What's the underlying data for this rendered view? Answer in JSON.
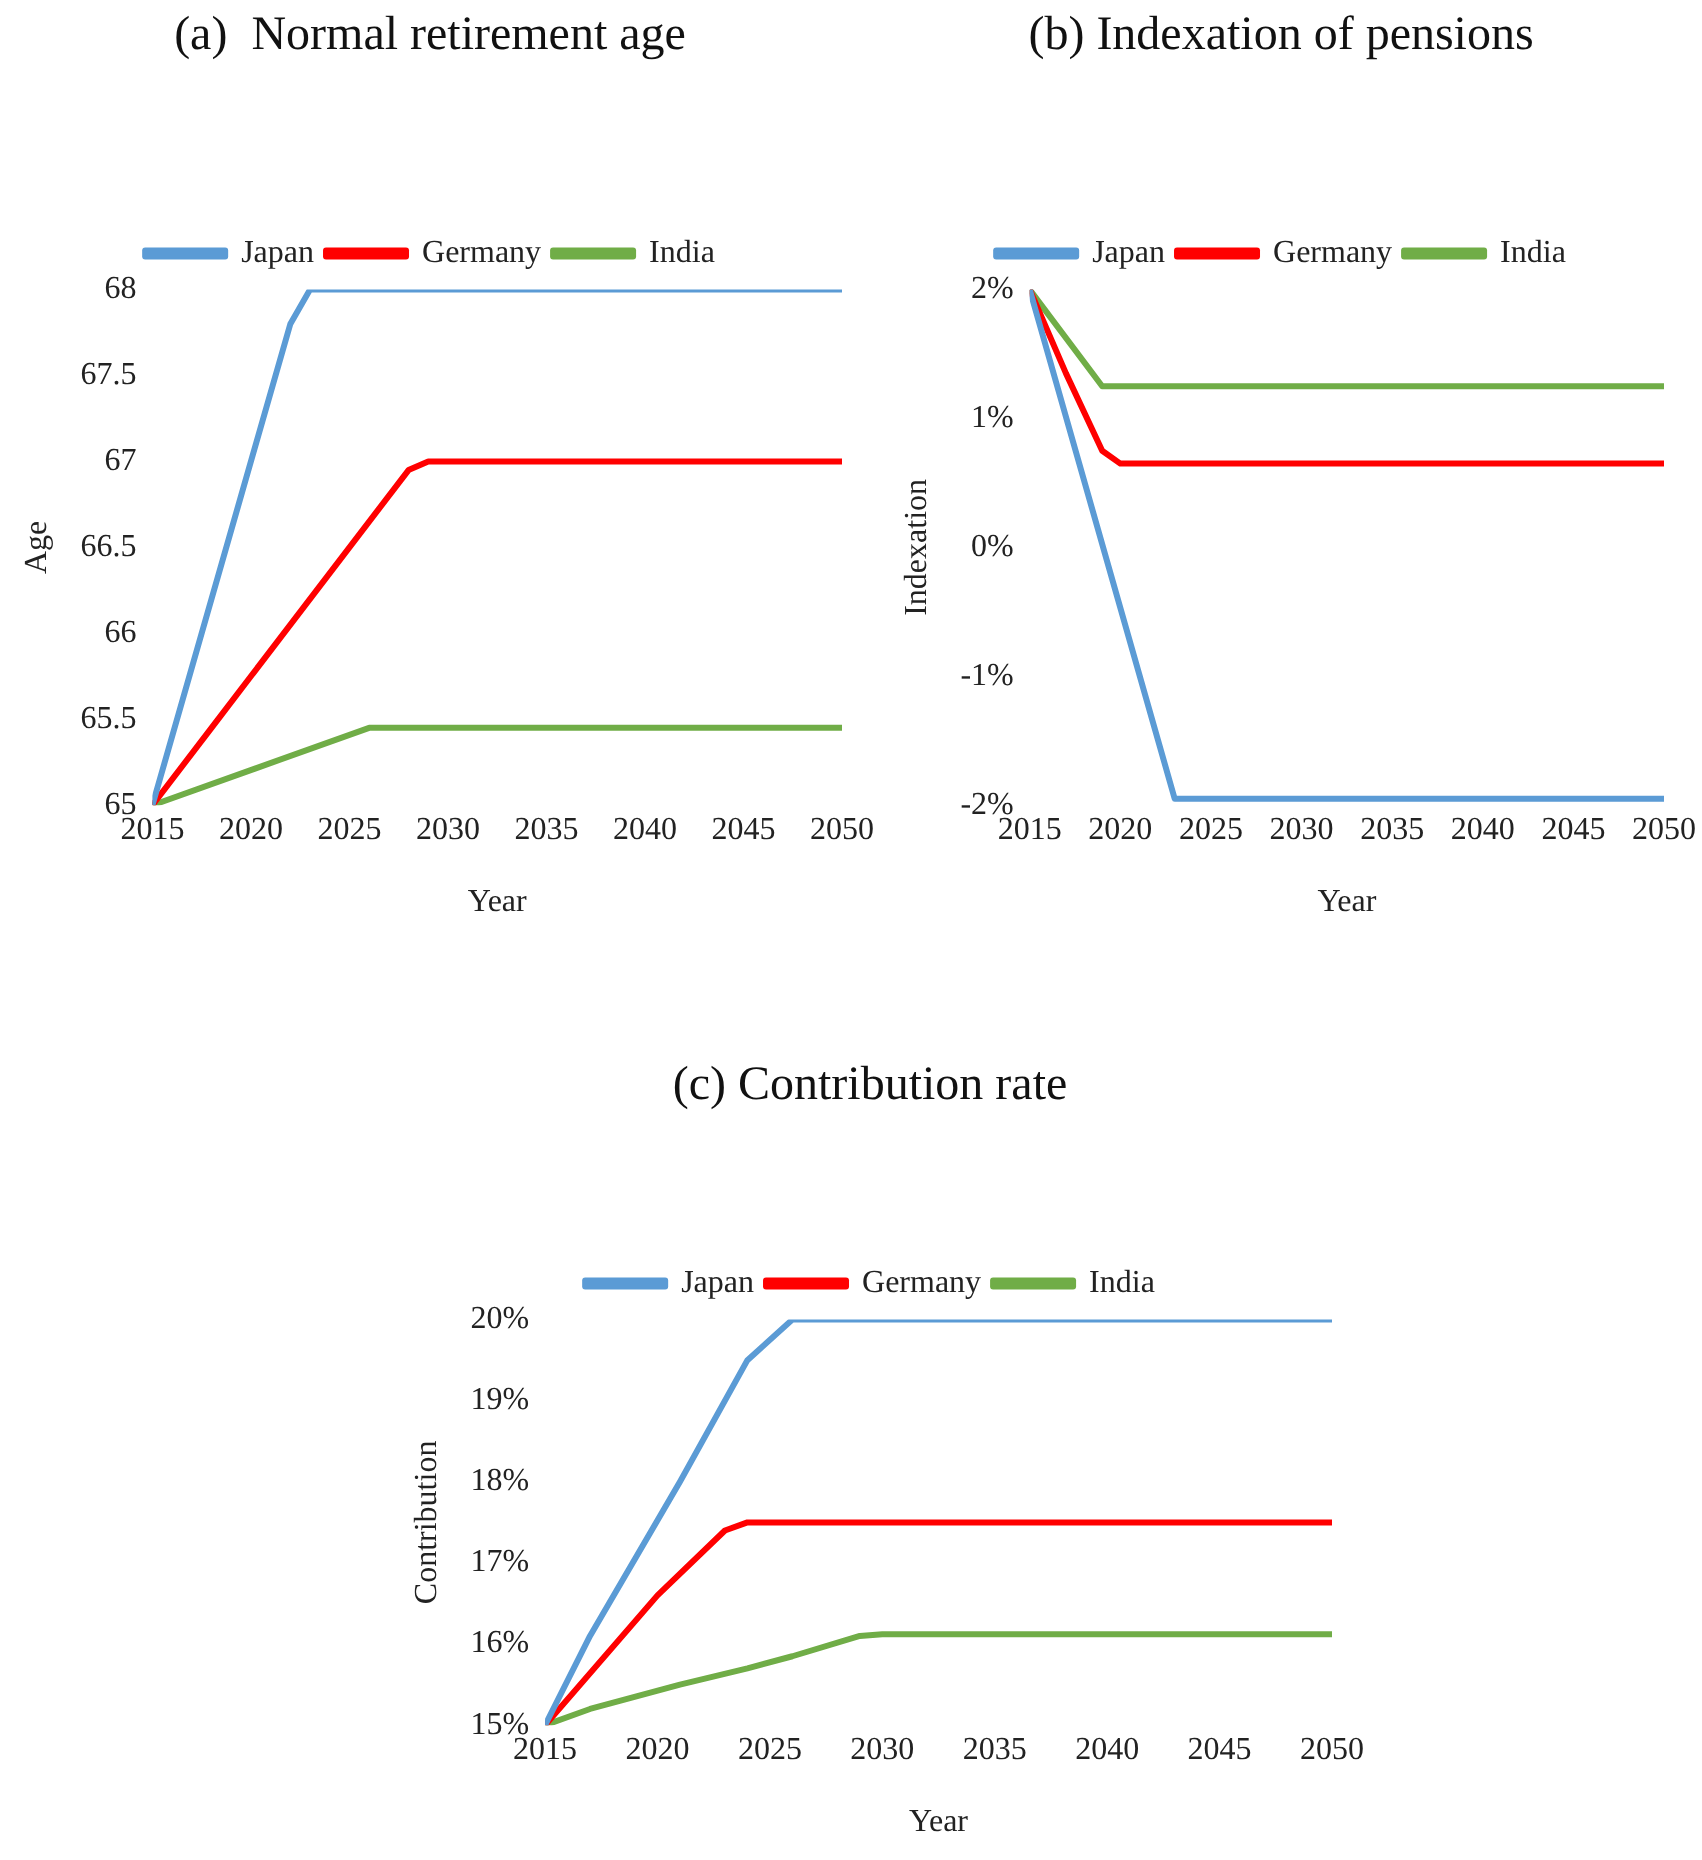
{
  "chart_data": [
    {
      "type": "line",
      "title": "(a)  Normal retirement age",
      "xlabel": "Year",
      "ylabel": "Age",
      "legend": "top",
      "grid": false,
      "marker": "none",
      "xlim": [
        2015,
        2050
      ],
      "xticks": [
        2015,
        2020,
        2025,
        2030,
        2035,
        2040,
        2045,
        2050
      ],
      "ylim": [
        65,
        68
      ],
      "yticks": [
        65,
        65.5,
        66,
        66.5,
        67,
        67.5,
        68
      ],
      "series": [
        {
          "name": "Japan",
          "color": "#5b9bd5",
          "x": [
            2015,
            2022,
            2023,
            2050
          ],
          "values": [
            65,
            67.8,
            68,
            68
          ]
        },
        {
          "name": "Germany",
          "color": "#ff0000",
          "x": [
            2015,
            2018,
            2020,
            2028,
            2029,
            2050
          ],
          "values": [
            65,
            65.45,
            65.75,
            66.95,
            67,
            67
          ]
        },
        {
          "name": "India",
          "color": "#70ad47",
          "x": [
            2015,
            2026,
            2050
          ],
          "values": [
            65,
            65.45,
            65.45
          ]
        }
      ]
    },
    {
      "type": "line",
      "title": "(b) Indexation of pensions",
      "xlabel": "Year",
      "ylabel": "Indexation",
      "legend": "top",
      "grid": false,
      "marker": "none",
      "xlim": [
        2015,
        2050
      ],
      "xticks": [
        2015,
        2020,
        2025,
        2030,
        2035,
        2040,
        2045,
        2050
      ],
      "ylim": [
        -2,
        2
      ],
      "yticks": [
        {
          "value": -2,
          "label": "-2%"
        },
        {
          "value": -1,
          "label": "-1%"
        },
        {
          "value": 0,
          "label": "0%"
        },
        {
          "value": 1,
          "label": "1%"
        },
        {
          "value": 2,
          "label": "2%"
        }
      ],
      "series": [
        {
          "name": "Japan",
          "color": "#5b9bd5",
          "x": [
            2015,
            2023,
            2050
          ],
          "values": [
            2,
            -1.95,
            -1.95
          ]
        },
        {
          "name": "Germany",
          "color": "#ff0000",
          "x": [
            2015,
            2017,
            2019,
            2020,
            2050
          ],
          "values": [
            2,
            1.35,
            0.75,
            0.65,
            0.65
          ]
        },
        {
          "name": "India",
          "color": "#70ad47",
          "x": [
            2015,
            2019,
            2050
          ],
          "values": [
            2,
            1.25,
            1.25
          ]
        }
      ]
    },
    {
      "type": "line",
      "title": "(c) Contribution rate",
      "xlabel": "Year",
      "ylabel": "Contribution",
      "legend": "top",
      "grid": false,
      "marker": "none",
      "xlim": [
        2015,
        2050
      ],
      "xticks": [
        2015,
        2020,
        2025,
        2030,
        2035,
        2040,
        2045,
        2050
      ],
      "ylim": [
        15,
        20
      ],
      "yticks": [
        {
          "value": 15,
          "label": "15%"
        },
        {
          "value": 16,
          "label": "16%"
        },
        {
          "value": 17,
          "label": "17%"
        },
        {
          "value": 18,
          "label": "18%"
        },
        {
          "value": 19,
          "label": "19%"
        },
        {
          "value": 20,
          "label": "20%"
        }
      ],
      "series": [
        {
          "name": "Japan",
          "color": "#5b9bd5",
          "x": [
            2015,
            2017,
            2021,
            2024,
            2026,
            2050
          ],
          "values": [
            15,
            16.1,
            18,
            19.5,
            20,
            20
          ]
        },
        {
          "name": "Germany",
          "color": "#ff0000",
          "x": [
            2015,
            2020,
            2023,
            2024,
            2050
          ],
          "values": [
            15,
            16.6,
            17.4,
            17.5,
            17.5
          ]
        },
        {
          "name": "India",
          "color": "#70ad47",
          "x": [
            2015,
            2017,
            2021,
            2024,
            2026,
            2029,
            2030,
            2050
          ],
          "values": [
            15,
            15.2,
            15.5,
            15.7,
            15.85,
            16.1,
            16.12,
            16.12
          ]
        }
      ]
    }
  ]
}
